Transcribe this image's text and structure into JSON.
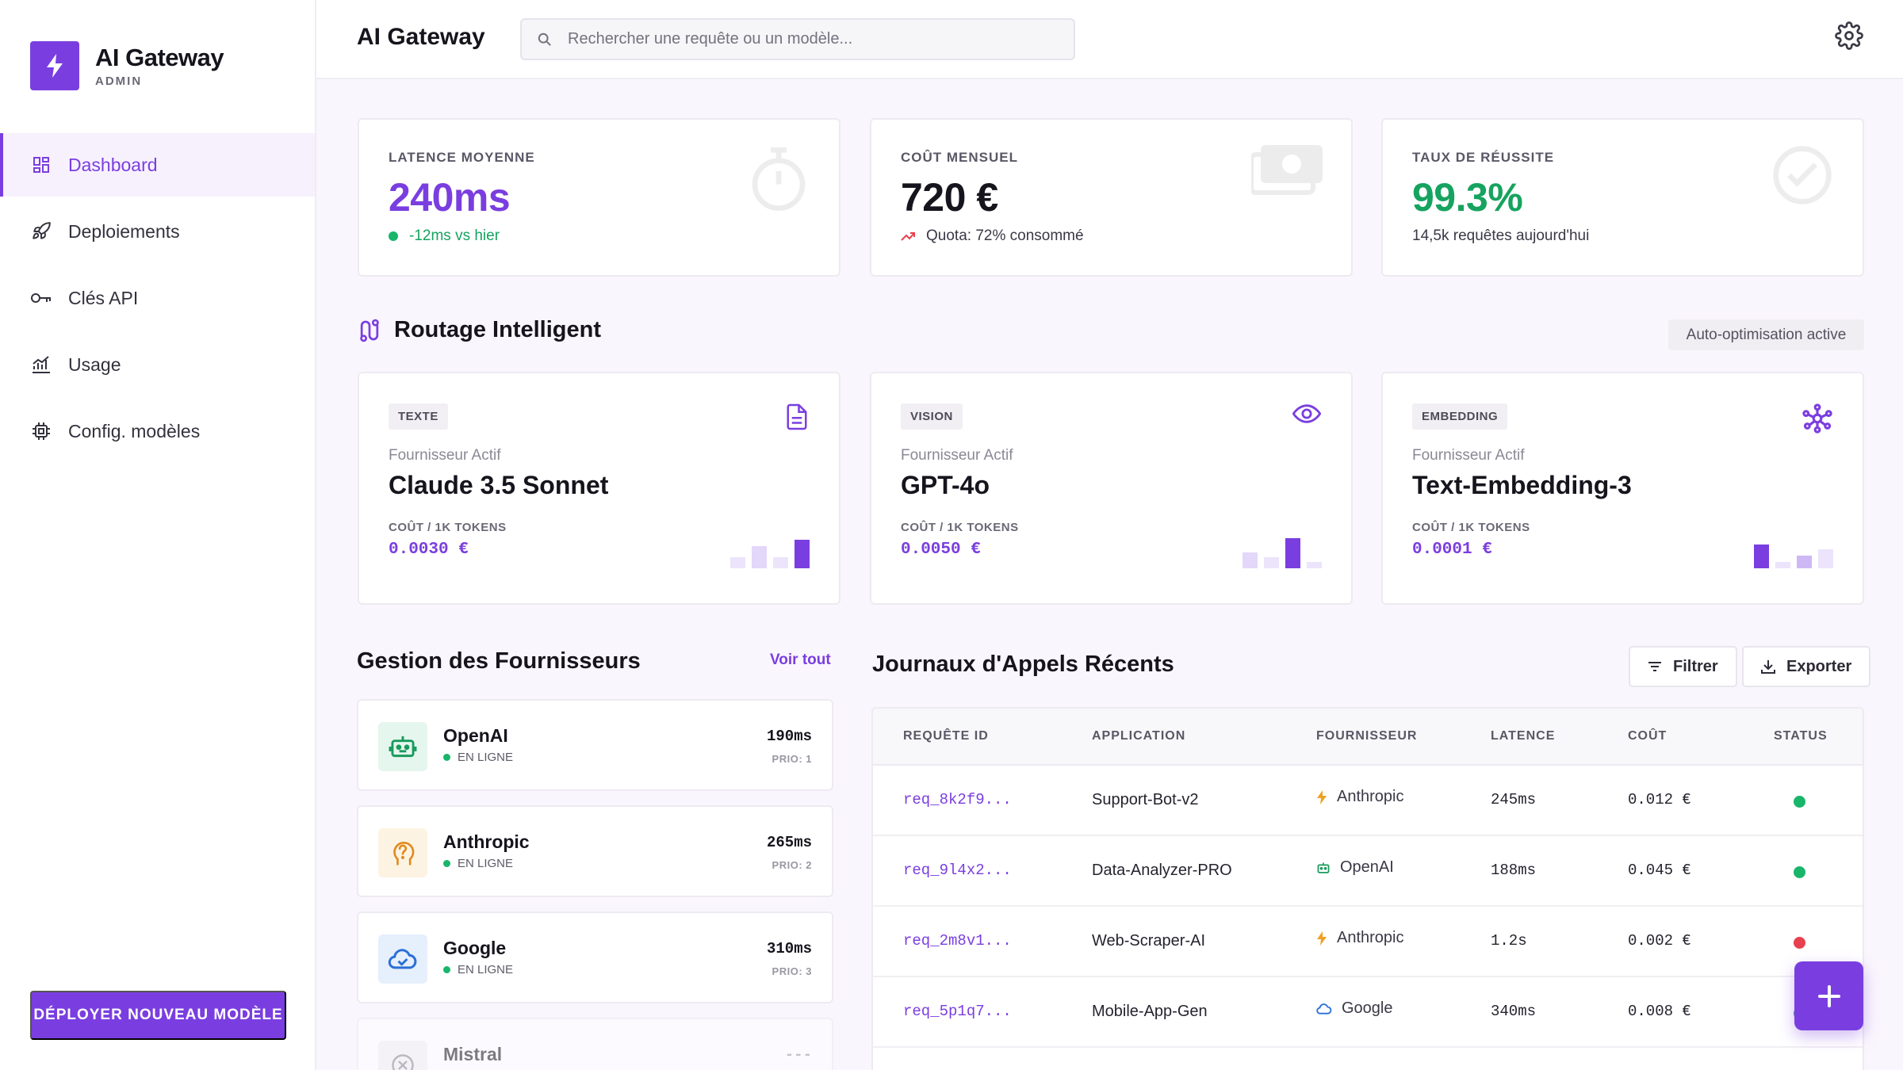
{
  "brand": {
    "title": "AI Gateway",
    "subtitle": "ADMIN"
  },
  "nav": [
    {
      "label": "Dashboard",
      "icon": "dashboard-icon",
      "active": true
    },
    {
      "label": "Deploiements",
      "icon": "rocket-icon"
    },
    {
      "label": "Clés API",
      "icon": "key-icon"
    },
    {
      "label": "Usage",
      "icon": "chart-icon"
    },
    {
      "label": "Config. modèles",
      "icon": "chip-icon"
    }
  ],
  "deploy_button": "DÉPLOYER NOUVEAU MODÈLE",
  "header": {
    "title": "AI Gateway",
    "search_placeholder": "Rechercher une requête ou un modèle..."
  },
  "stats": [
    {
      "label": "LATENCE MOYENNE",
      "value": "240ms",
      "sub": "-12ms vs hier",
      "color": "#7a3ee0",
      "sub_color": "#16a35f"
    },
    {
      "label": "COÛT MENSUEL",
      "value": "720 €",
      "sub": "Quota: 72% consommé",
      "color": "#16141c",
      "sub_color": "#3b3846"
    },
    {
      "label": "TAUX DE RÉUSSITE",
      "value": "99.3%",
      "sub": "14,5k requêtes aujourd'hui",
      "color": "#16a35f",
      "sub_color": "#3b3846"
    }
  ],
  "routing": {
    "title": "Routage Intelligent",
    "badge": "Auto-optimisation active",
    "cards": [
      {
        "tag": "TEXTE",
        "icon": "document-icon",
        "provider_label": "Fournisseur Actif",
        "model": "Claude 3.5 Sonnet",
        "cost_label": "COÛT / 1K TOKENS",
        "cost": "0.0030 €"
      },
      {
        "tag": "VISION",
        "icon": "eye-icon",
        "provider_label": "Fournisseur Actif",
        "model": "GPT-4o",
        "cost_label": "COÛT / 1K TOKENS",
        "cost": "0.0050 €"
      },
      {
        "tag": "EMBEDDING",
        "icon": "network-icon",
        "provider_label": "Fournisseur Actif",
        "model": "Text-Embedding-3",
        "cost_label": "COÛT / 1K TOKENS",
        "cost": "0.0001 €"
      }
    ]
  },
  "providers": {
    "title": "Gestion des Fournisseurs",
    "link": "Voir tout",
    "items": [
      {
        "name": "OpenAI",
        "status": "EN LIGNE",
        "latency": "190ms",
        "priority": "PRIO: 1",
        "icon": "robot-icon"
      },
      {
        "name": "Anthropic",
        "status": "EN LIGNE",
        "latency": "265ms",
        "priority": "PRIO: 2",
        "icon": "brain-icon"
      },
      {
        "name": "Google",
        "status": "EN LIGNE",
        "latency": "310ms",
        "priority": "PRIO: 3",
        "icon": "cloud-icon"
      },
      {
        "name": "Mistral",
        "status": "",
        "latency": "---",
        "priority": "",
        "icon": "x-circle-icon"
      }
    ]
  },
  "logs": {
    "title": "Journaux d'Appels Récents",
    "filter": "Filtrer",
    "export": "Exporter",
    "columns": [
      "REQUÊTE ID",
      "APPLICATION",
      "FOURNISSEUR",
      "LATENCE",
      "COÛT",
      "STATUS"
    ],
    "rows": [
      {
        "id": "req_8k2f9...",
        "app": "Support-Bot-v2",
        "provider": "Anthropic",
        "latency": "245ms",
        "cost": "0.012 €",
        "status": "ok"
      },
      {
        "id": "req_9l4x2...",
        "app": "Data-Analyzer-PRO",
        "provider": "OpenAI",
        "latency": "188ms",
        "cost": "0.045 €",
        "status": "ok"
      },
      {
        "id": "req_2m8v1...",
        "app": "Web-Scraper-AI",
        "provider": "Anthropic",
        "latency": "1.2s",
        "cost": "0.002 €",
        "status": "error"
      },
      {
        "id": "req_5p1q7...",
        "app": "Mobile-App-Gen",
        "provider": "Google",
        "latency": "340ms",
        "cost": "0.008 €",
        "status": "ok"
      }
    ]
  },
  "colors": {
    "accent": "#7a3ee0",
    "success": "#19b56b",
    "error": "#e8404e"
  }
}
